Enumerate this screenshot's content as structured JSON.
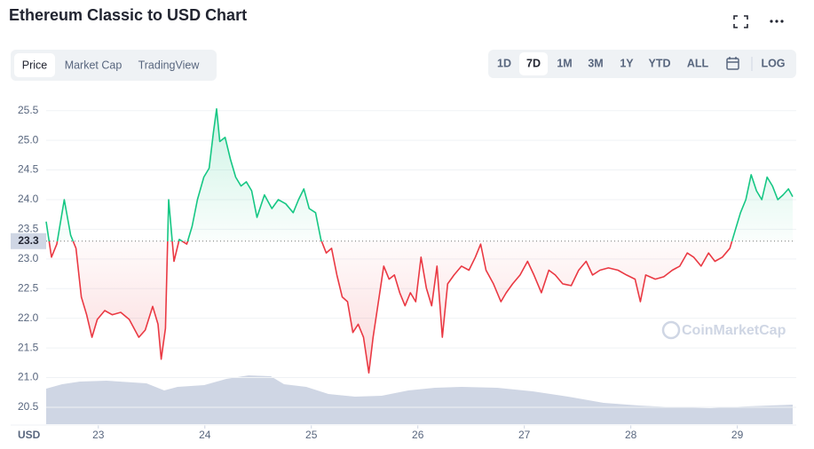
{
  "chart_data": {
    "type": "line",
    "title": "Ethereum Classic to USD Chart",
    "x": [
      22.51,
      22.56,
      22.61,
      22.68,
      22.74,
      22.79,
      22.84,
      22.89,
      22.94,
      22.99,
      23.06,
      23.13,
      23.21,
      23.29,
      23.38,
      23.44,
      23.51,
      23.56,
      23.59,
      23.63,
      23.66,
      23.71,
      23.76,
      23.83,
      23.88,
      23.93,
      23.99,
      24.04,
      24.08,
      24.11,
      24.14,
      24.19,
      24.24,
      24.29,
      24.34,
      24.39,
      24.44,
      24.49,
      24.56,
      24.63,
      24.69,
      24.76,
      24.83,
      24.88,
      24.93,
      24.98,
      25.04,
      25.09,
      25.14,
      25.19,
      25.24,
      25.29,
      25.34,
      25.39,
      25.44,
      25.49,
      25.54,
      25.58,
      25.63,
      25.68,
      25.73,
      25.78,
      25.83,
      25.88,
      25.93,
      25.98,
      26.03,
      26.08,
      26.13,
      26.18,
      26.23,
      26.28,
      26.34,
      26.41,
      26.48,
      26.54,
      26.59,
      26.64,
      26.71,
      26.78,
      26.83,
      26.89,
      26.96,
      27.03,
      27.09,
      27.16,
      27.23,
      27.29,
      27.36,
      27.44,
      27.51,
      27.58,
      27.64,
      27.71,
      27.79,
      27.88,
      27.96,
      28.04,
      28.09,
      28.14,
      28.23,
      28.31,
      28.39,
      28.46,
      28.53,
      28.59,
      28.66,
      28.73,
      28.79,
      28.86,
      28.93,
      28.98,
      29.03,
      29.08,
      29.13,
      29.18,
      29.23,
      29.28,
      29.33,
      29.38,
      29.43,
      29.48,
      29.52
    ],
    "values": [
      23.63,
      23.03,
      23.25,
      24.0,
      23.4,
      23.18,
      22.36,
      22.06,
      21.68,
      21.98,
      22.13,
      22.06,
      22.1,
      21.98,
      21.68,
      21.8,
      22.2,
      21.9,
      21.31,
      21.83,
      24.0,
      22.96,
      23.33,
      23.25,
      23.55,
      24.0,
      24.38,
      24.53,
      25.13,
      25.53,
      24.98,
      25.05,
      24.68,
      24.38,
      24.23,
      24.3,
      24.15,
      23.7,
      24.08,
      23.85,
      24.0,
      23.93,
      23.78,
      24.0,
      24.18,
      23.85,
      23.78,
      23.33,
      23.1,
      23.18,
      22.73,
      22.36,
      22.28,
      21.76,
      21.9,
      21.68,
      21.08,
      21.68,
      22.28,
      22.88,
      22.66,
      22.73,
      22.43,
      22.21,
      22.43,
      22.28,
      23.03,
      22.51,
      22.21,
      22.88,
      21.68,
      22.58,
      22.73,
      22.88,
      22.81,
      23.03,
      23.25,
      22.81,
      22.58,
      22.28,
      22.43,
      22.58,
      22.73,
      22.96,
      22.73,
      22.43,
      22.81,
      22.73,
      22.58,
      22.55,
      22.81,
      22.96,
      22.73,
      22.81,
      22.85,
      22.81,
      22.73,
      22.66,
      22.28,
      22.73,
      22.66,
      22.7,
      22.81,
      22.88,
      23.1,
      23.03,
      22.88,
      23.1,
      22.96,
      23.03,
      23.18,
      23.48,
      23.78,
      24.0,
      24.42,
      24.15,
      24.0,
      24.38,
      24.23,
      24.0,
      24.08,
      24.18,
      24.05
    ],
    "baseline": 23.3,
    "color_up": "#16c784",
    "color_down": "#ea3943",
    "xlim": [
      22.51,
      29.52
    ],
    "xticks": [
      23,
      24,
      25,
      26,
      27,
      28,
      29
    ],
    "ylim": [
      20.2,
      25.75
    ],
    "yticks": [
      20.5,
      {
        "value": 21,
        "label": "21.0"
      },
      21.5,
      {
        "value": 22,
        "label": "22.0"
      },
      22.5,
      {
        "value": 23,
        "label": "23.0"
      },
      23.5,
      {
        "value": 24,
        "label": "24.0"
      },
      24.5,
      {
        "value": 25,
        "label": "25.0"
      },
      25.5
    ],
    "grid": true,
    "currency": "USD",
    "watermark": "CoinMarketCap"
  },
  "ui": {
    "tabs": [
      "Price",
      "Market Cap",
      "TradingView"
    ],
    "active_tab": 0,
    "ranges": [
      "1D",
      "7D",
      "1M",
      "3M",
      "1Y",
      "YTD",
      "ALL"
    ],
    "active_range": 1,
    "log": "LOG"
  }
}
